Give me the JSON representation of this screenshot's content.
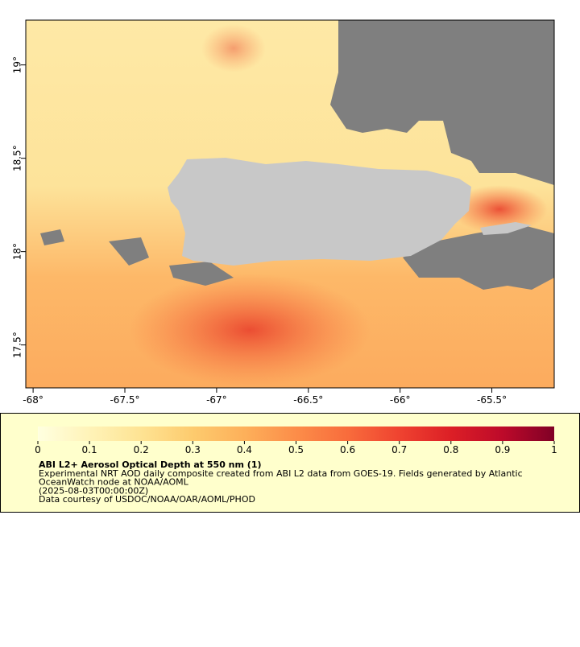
{
  "map": {
    "xlim": [
      -68.04,
      -65.16
    ],
    "ylim": [
      17.27,
      19.24
    ],
    "xticks": [
      {
        "value": -68,
        "label": "-68°"
      },
      {
        "value": -67.5,
        "label": "-67.5°"
      },
      {
        "value": -67,
        "label": "-67°"
      },
      {
        "value": -66.5,
        "label": "-66.5°"
      },
      {
        "value": -66,
        "label": "-66°"
      },
      {
        "value": -65.5,
        "label": "-65.5°"
      }
    ],
    "yticks": [
      {
        "value": 17.5,
        "label": "17.5°"
      },
      {
        "value": 18,
        "label": "18°"
      },
      {
        "value": 18.5,
        "label": "18.5°"
      },
      {
        "value": 19,
        "label": "19°"
      }
    ],
    "land_color": "#c8c8c8",
    "mask_color": "#7f7f7f"
  },
  "legend": {
    "colorbar": {
      "lim": [
        0,
        1
      ],
      "ticks": [
        0,
        0.1,
        0.2,
        0.3,
        0.4,
        0.5,
        0.6,
        0.7,
        0.8,
        0.9,
        1
      ],
      "colors": [
        "#ffffe0",
        "#fff3b8",
        "#fee393",
        "#fdcb6e",
        "#fdb05a",
        "#fc8d49",
        "#f86c3c",
        "#ef4330",
        "#dc1f26",
        "#bd0a2a",
        "#800026"
      ]
    },
    "title": "ABI L2+ Aerosol Optical Depth at 550 nm (1)",
    "lines": [
      "Experimental NRT AOD daily composite created from ABI L2 data from GOES-19. Fields generated by Atlantic",
      "OceanWatch node at NOAA/AOML",
      "(2025-08-03T00:00:00Z)",
      "Data courtesy of USDOC/NOAA/OAR/AOML/PHOD"
    ]
  }
}
